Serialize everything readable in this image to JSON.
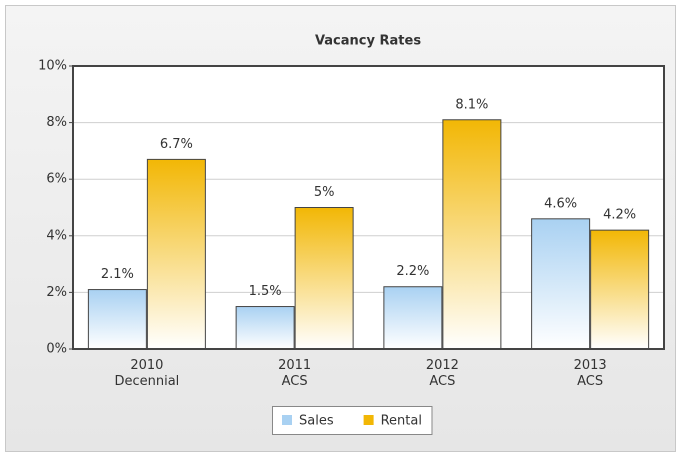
{
  "chart_data": {
    "type": "bar",
    "title": "Vacancy Rates",
    "categories": [
      [
        "2010",
        "Decennial"
      ],
      [
        "2011",
        "ACS"
      ],
      [
        "2012",
        "ACS"
      ],
      [
        "2013",
        "ACS"
      ]
    ],
    "series": [
      {
        "name": "Sales",
        "color": "#a9d1f2",
        "values": [
          2.1,
          1.5,
          2.2,
          4.6
        ],
        "value_labels": [
          "2.1%",
          "1.5%",
          "2.2%",
          "4.6%"
        ]
      },
      {
        "name": "Rental",
        "color": "#f2b705",
        "values": [
          6.7,
          5,
          8.1,
          4.2
        ],
        "value_labels": [
          "6.7%",
          "5%",
          "8.1%",
          "4.2%"
        ]
      }
    ],
    "ylim": [
      0,
      10
    ],
    "yticks": [
      {
        "value": 0,
        "label": "0%"
      },
      {
        "value": 2,
        "label": "2%"
      },
      {
        "value": 4,
        "label": "4%"
      },
      {
        "value": 6,
        "label": "6%"
      },
      {
        "value": 8,
        "label": "8%"
      },
      {
        "value": 10,
        "label": "10%"
      }
    ],
    "grid": true
  }
}
